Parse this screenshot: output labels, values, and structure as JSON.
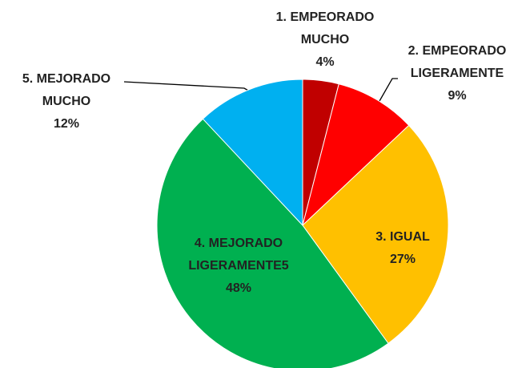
{
  "chart_data": {
    "type": "pie",
    "categories": [
      "1. EMPEORADO MUCHO",
      "2. EMPEORADO LIGERAMENTE",
      "3. IGUAL",
      "4. MEJORADO LIGERAMENTE5",
      "5. MEJORADO MUCHO"
    ],
    "values": [
      4,
      9,
      27,
      48,
      12
    ],
    "value_labels": [
      "4%",
      "9%",
      "27%",
      "48%",
      "12%"
    ],
    "colors": [
      "#c00000",
      "#ff0000",
      "#ffc000",
      "#00b050",
      "#00b0f0"
    ]
  }
}
